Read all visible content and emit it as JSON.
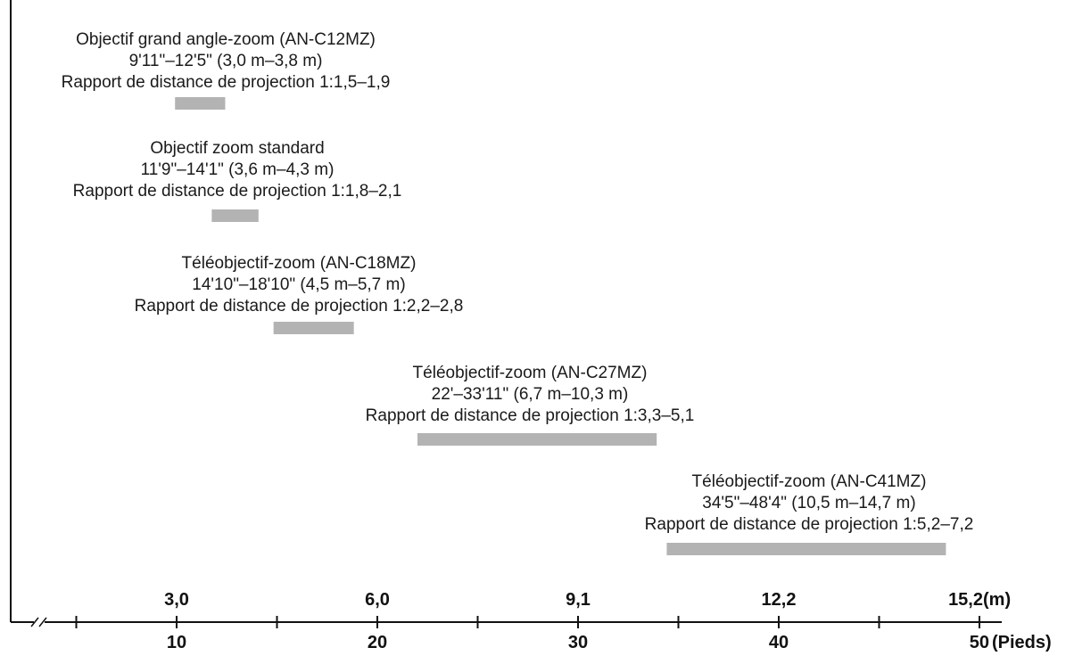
{
  "chart_data": {
    "type": "range",
    "units": {
      "metric": "(m)",
      "imperial": "(Pieds)"
    },
    "axis": {
      "feet_range": [
        0,
        50
      ],
      "metric_ticks": [
        {
          "label": "3,0",
          "value_ft": 10
        },
        {
          "label": "6,0",
          "value_ft": 20
        },
        {
          "label": "9,1",
          "value_ft": 30
        },
        {
          "label": "12,2",
          "value_ft": 40
        },
        {
          "label": "15,2",
          "value_ft": 50
        }
      ],
      "feet_ticks": [
        {
          "label": "10",
          "value_ft": 10
        },
        {
          "label": "20",
          "value_ft": 20
        },
        {
          "label": "30",
          "value_ft": 30
        },
        {
          "label": "40",
          "value_ft": 40
        },
        {
          "label": "50",
          "value_ft": 50
        }
      ],
      "minor_ticks_ft": [
        5,
        15,
        25,
        35,
        45
      ],
      "axis_break": true
    },
    "lenses": [
      {
        "name": "Objectif grand angle-zoom (AN-C12MZ)",
        "distance": "9'11\"–12'5\" (3,0 m–3,8 m)",
        "ratio": "Rapport de distance de projection 1:1,5–1,9",
        "start_ft": 9.92,
        "end_ft": 12.42
      },
      {
        "name": "Objectif zoom standard",
        "distance": "11'9\"–14'1\" (3,6 m–4,3 m)",
        "ratio": "Rapport de distance de projection 1:1,8–2,1",
        "start_ft": 11.75,
        "end_ft": 14.08
      },
      {
        "name": "Téléobjectif-zoom (AN-C18MZ)",
        "distance": "14'10\"–18'10\" (4,5 m–5,7 m)",
        "ratio": "Rapport de distance de projection 1:2,2–2,8",
        "start_ft": 14.83,
        "end_ft": 18.83
      },
      {
        "name": "Téléobjectif-zoom (AN-C27MZ)",
        "distance": "22'–33'11\" (6,7 m–10,3 m)",
        "ratio": "Rapport de distance de projection 1:3,3–5,1",
        "start_ft": 22.0,
        "end_ft": 33.92
      },
      {
        "name": "Téléobjectif-zoom (AN-C41MZ)",
        "distance": "34'5\"–48'4\" (10,5 m–14,7 m)",
        "ratio": "Rapport de distance de projection 1:5,2–7,2",
        "start_ft": 34.42,
        "end_ft": 48.33
      }
    ],
    "colors": {
      "bar": "#b3b3b3",
      "axis": "#111111",
      "text": "#1a1a1a"
    }
  }
}
